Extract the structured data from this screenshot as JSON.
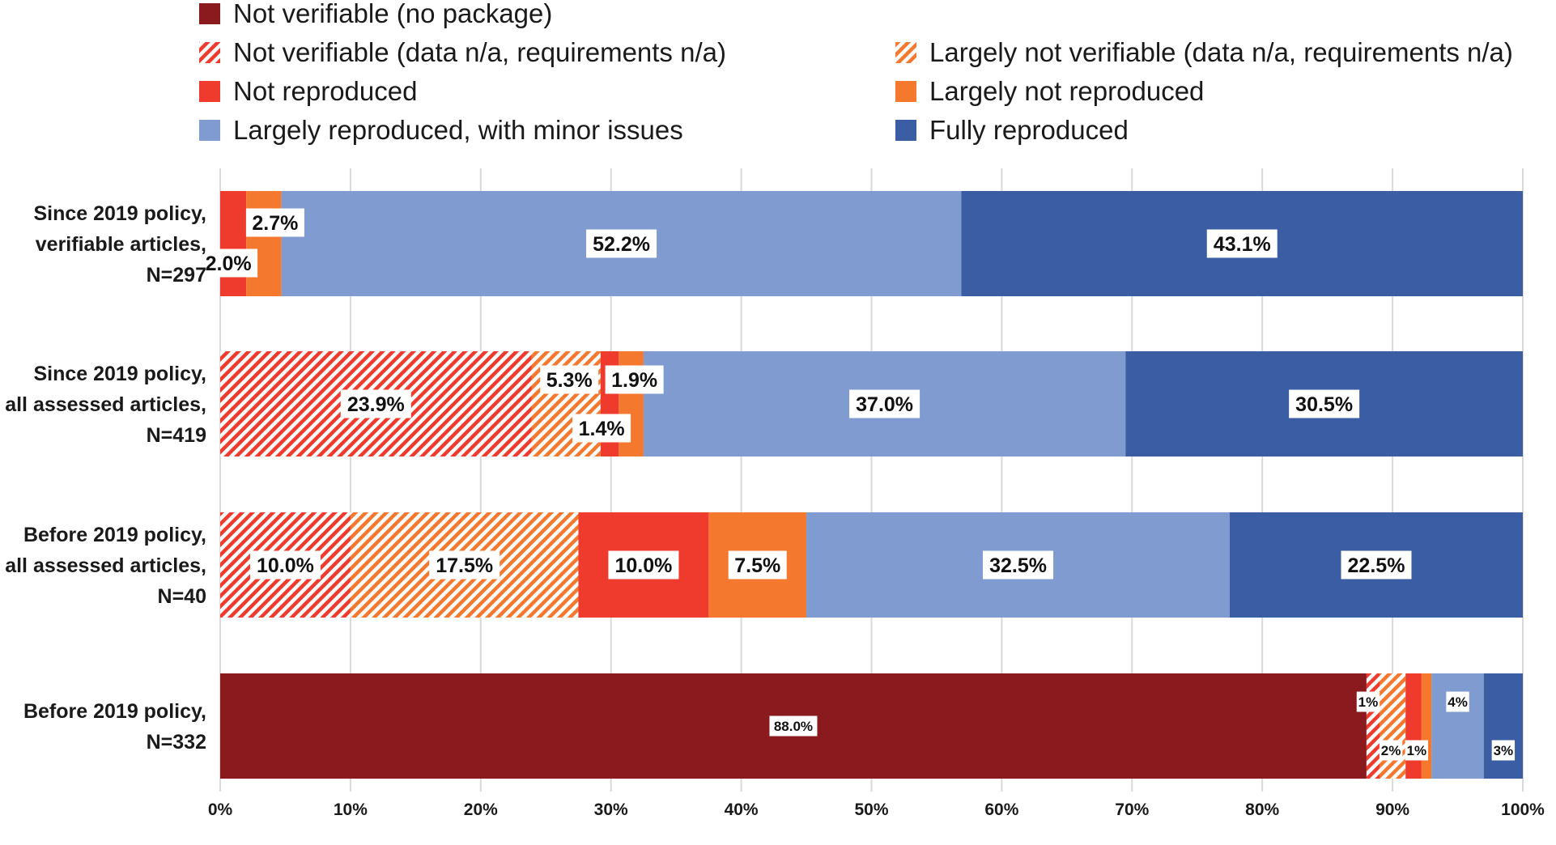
{
  "chart_data": {
    "type": "bar",
    "orientation": "horizontal",
    "stacked": "percent",
    "categories": [
      [
        "Since 2019 policy,",
        "verifiable articles,",
        "N=297"
      ],
      [
        "Since 2019 policy,",
        "all assessed articles,",
        "N=419"
      ],
      [
        "Before 2019 policy,",
        "all assessed articles,",
        "N=40"
      ],
      [
        "Before 2019 policy,",
        "N=332"
      ]
    ],
    "series": [
      {
        "name": "Not verifiable (no package)",
        "color": "#8B1A1E",
        "pattern": "solid",
        "values": [
          0,
          0,
          0,
          88.0
        ],
        "labels": [
          "",
          "",
          "",
          "88.0%"
        ]
      },
      {
        "name": "Not verifiable (data n/a, requirements n/a)",
        "color": "#EE3B2D",
        "pattern": "hatch",
        "values": [
          0,
          23.9,
          10.0,
          1
        ],
        "labels": [
          "",
          "23.9%",
          "10.0%",
          "1%"
        ]
      },
      {
        "name": "Largely not verifiable (data n/a, requirements n/a)",
        "color": "#F4782E",
        "pattern": "hatch",
        "values": [
          0,
          5.3,
          17.5,
          2
        ],
        "labels": [
          "",
          "5.3%",
          "17.5%",
          "2%"
        ]
      },
      {
        "name": "Not reproduced",
        "color": "#EE3B2D",
        "pattern": "solid",
        "values": [
          2.0,
          1.4,
          10.0,
          1.2
        ],
        "labels": [
          "2.0%",
          "1.4%",
          "10.0%",
          "1%"
        ]
      },
      {
        "name": "Largely not reproduced",
        "color": "#F4782E",
        "pattern": "solid",
        "values": [
          2.7,
          1.9,
          7.5,
          0.8
        ],
        "labels": [
          "2.7%",
          "1.9%",
          "7.5%",
          ""
        ]
      },
      {
        "name": "Largely reproduced, with minor issues",
        "color": "#7F9BD0",
        "pattern": "solid",
        "values": [
          52.2,
          37.0,
          32.5,
          4
        ],
        "labels": [
          "52.2%",
          "37.0%",
          "32.5%",
          "4%"
        ]
      },
      {
        "name": "Fully reproduced",
        "color": "#3A5DA3",
        "pattern": "solid",
        "values": [
          43.1,
          30.5,
          22.5,
          3
        ],
        "labels": [
          "43.1%",
          "30.5%",
          "22.5%",
          "3%"
        ]
      }
    ],
    "xlim": [
      0,
      100
    ],
    "x_ticks": [
      "0%",
      "10%",
      "20%",
      "30%",
      "40%",
      "50%",
      "60%",
      "70%",
      "80%",
      "90%",
      "100%"
    ],
    "grid": true,
    "legend_position": "top"
  }
}
